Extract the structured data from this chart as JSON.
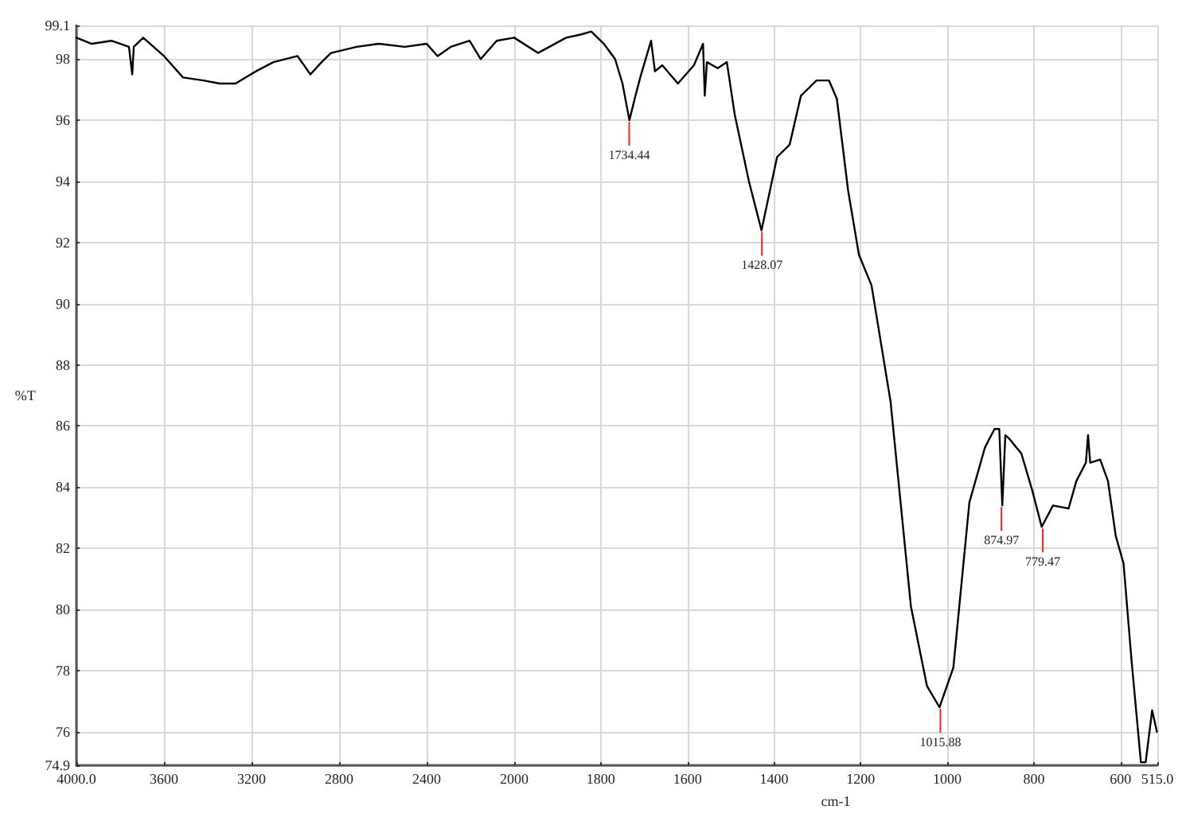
{
  "chart_data": [
    {
      "type": "line",
      "ylabel": "%T",
      "x": [
        4000,
        3930,
        3840,
        3760,
        3745,
        3738,
        3695,
        3600,
        3513,
        3420,
        3345,
        3273,
        3180,
        3100,
        2990,
        2931,
        2880,
        2837,
        2720,
        2618,
        2500,
        2400,
        2350,
        2290,
        2204,
        2153,
        2080,
        2000
      ],
      "series": [
        {
          "color": "#000000",
          "values": [
            98.7,
            98.5,
            98.6,
            98.4,
            97.5,
            98.4,
            98.7,
            98.1,
            97.4,
            97.3,
            97.2,
            97.2,
            97.6,
            97.9,
            98.1,
            97.5,
            97.9,
            98.2,
            98.4,
            98.5,
            98.4,
            98.5,
            98.1,
            98.4,
            98.6,
            98.0,
            98.6,
            98.7
          ]
        }
      ],
      "xlim": [
        4000,
        2000
      ],
      "ylim": [
        74.9,
        99.1
      ],
      "xticks": [
        {
          "value": 4000,
          "label": "4000.0"
        },
        3600,
        3200,
        2800,
        2400
      ],
      "yticks": [
        74.9,
        76,
        78,
        80,
        82,
        84,
        86,
        88,
        90,
        92,
        94,
        96,
        98,
        99.1
      ],
      "grid": true,
      "marker": "none",
      "line_style": "solid"
    },
    {
      "type": "line",
      "xlabel": "cm-1",
      "tick_labels": "x",
      "x": [
        2000,
        1945,
        1880,
        1847,
        1822,
        1793,
        1767,
        1750,
        1734,
        1720,
        1709,
        1684,
        1675,
        1658,
        1622,
        1585,
        1564,
        1560,
        1555,
        1530,
        1509,
        1491,
        1458,
        1429,
        1393,
        1364,
        1338,
        1302,
        1273,
        1255,
        1229,
        1204,
        1175,
        1131,
        1084,
        1047,
        1018,
        986,
        949,
        913,
        891,
        880,
        873,
        866,
        858,
        829,
        804,
        782,
        756,
        720,
        702,
        680,
        675,
        670,
        647,
        629,
        611,
        593,
        575,
        553,
        542,
        527,
        516
      ],
      "series": [
        {
          "color": "#000000",
          "values": [
            98.7,
            98.2,
            98.7,
            98.8,
            98.9,
            98.5,
            98.0,
            97.2,
            96.0,
            96.8,
            97.4,
            98.6,
            97.6,
            97.8,
            97.2,
            97.8,
            98.5,
            96.8,
            97.9,
            97.7,
            97.9,
            96.2,
            94.0,
            92.4,
            94.8,
            95.2,
            96.8,
            97.3,
            97.3,
            96.7,
            93.7,
            91.6,
            90.6,
            86.8,
            80.1,
            77.5,
            76.8,
            78.1,
            83.5,
            85.3,
            85.9,
            85.9,
            83.4,
            85.7,
            85.6,
            85.1,
            83.9,
            82.7,
            83.4,
            83.3,
            84.2,
            84.8,
            85.7,
            84.8,
            84.9,
            84.2,
            82.4,
            81.5,
            78.4,
            75.0,
            75.0,
            76.7,
            76.0
          ]
        }
      ],
      "xlim": [
        2000,
        515
      ],
      "ylim": [
        74.9,
        99.1
      ],
      "xticks": [
        2000,
        1800,
        1600,
        1400,
        1200,
        1000,
        800,
        600,
        {
          "value": 515,
          "label": "515.0"
        }
      ],
      "yticks": [
        74.9,
        76,
        78,
        80,
        82,
        84,
        86,
        88,
        90,
        92,
        94,
        96,
        98,
        99.1
      ],
      "annotations": [
        {
          "text": "1734.44",
          "x": 1734.44,
          "y": 96.0
        },
        {
          "text": "1428.07",
          "x": 1428.07,
          "y": 92.4
        },
        {
          "text": "1015.88",
          "x": 1015.88,
          "y": 76.8
        },
        {
          "text": "874.97",
          "x": 874.97,
          "y": 83.4
        },
        {
          "text": "779.47",
          "x": 779.47,
          "y": 82.7
        }
      ],
      "grid": true,
      "marker": "none",
      "line_style": "solid"
    }
  ]
}
